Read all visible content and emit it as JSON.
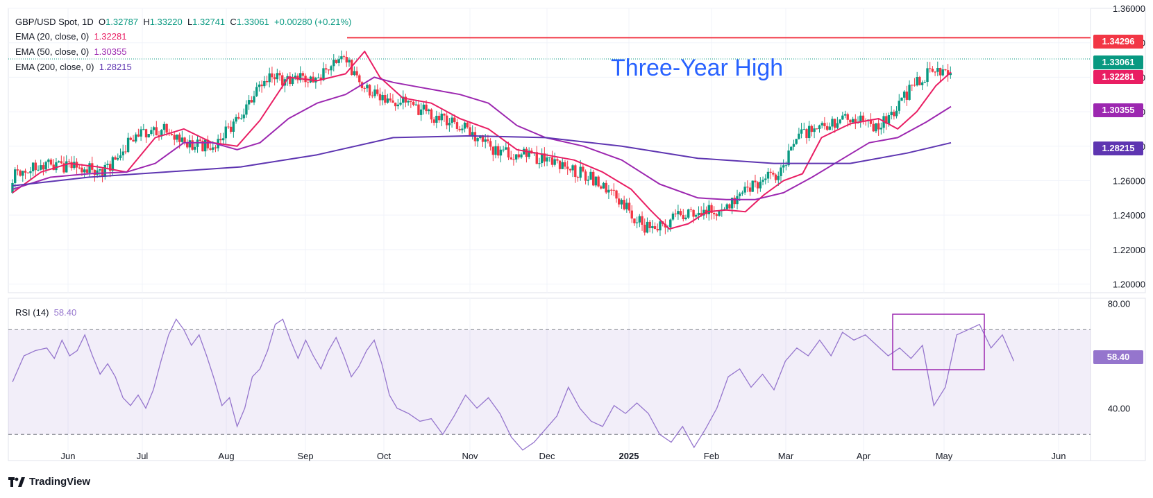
{
  "instrument": {
    "title": "GBP/USD Spot, 1D",
    "open_label": "O",
    "open": "1.32787",
    "high_label": "H",
    "high": "1.33220",
    "low_label": "L",
    "low": "1.32741",
    "close_label": "C",
    "close": "1.33061",
    "change": "+0.00280 (+0.21%)"
  },
  "indicators": {
    "ema20": {
      "label": "EMA (20, close, 0)",
      "value": "1.32281",
      "color": "#e91e63"
    },
    "ema50": {
      "label": "EMA (50, close, 0)",
      "value": "1.30355",
      "color": "#9c27b0"
    },
    "ema200": {
      "label": "EMA (200, close, 0)",
      "value": "1.28215",
      "color": "#5e35b1"
    },
    "rsi": {
      "label": "RSI (14)",
      "value": "58.40",
      "color": "#9575cd"
    }
  },
  "annotation": "Three-Year High",
  "price_badges": {
    "resistance": {
      "value": "1.34296",
      "color": "#f23645"
    },
    "last": {
      "value": "1.33061",
      "color": "#089981"
    },
    "ema20": {
      "value": "1.32281",
      "color": "#e91e63"
    },
    "ema50": {
      "value": "1.30355",
      "color": "#9c27b0"
    },
    "ema200": {
      "value": "1.28215",
      "color": "#5e35b1"
    },
    "rsi": {
      "value": "58.40",
      "color": "#9575cd"
    }
  },
  "brand": "TradingView",
  "chart_data": [
    {
      "type": "candlestick",
      "title": "GBP/USD Spot, 1D",
      "y_ticks": [
        "1.36000",
        "1.34000",
        "1.32000",
        "1.30000",
        "1.28000",
        "1.26000",
        "1.24000",
        "1.22000",
        "1.20000"
      ],
      "ylim": [
        1.195,
        1.36
      ],
      "x_ticks": [
        "Jun",
        "Jul",
        "Aug",
        "Sep",
        "Oct",
        "Nov",
        "Dec",
        "2025",
        "Feb",
        "Mar",
        "Apr",
        "May",
        "Jun"
      ],
      "resistance_level": 1.34296,
      "last_price": 1.33061,
      "series": [
        {
          "name": "EMA (20, close, 0)",
          "color": "#e91e63",
          "points": [
            [
              0,
              1.253
            ],
            [
              15,
              1.265
            ],
            [
              30,
              1.27
            ],
            [
              45,
              1.268
            ],
            [
              60,
              1.265
            ],
            [
              75,
              1.285
            ],
            [
              90,
              1.29
            ],
            [
              105,
              1.282
            ],
            [
              118,
              1.28
            ],
            [
              130,
              1.295
            ],
            [
              145,
              1.32
            ],
            [
              160,
              1.318
            ],
            [
              175,
              1.322
            ],
            [
              185,
              1.335
            ],
            [
              193,
              1.32
            ],
            [
              205,
              1.308
            ],
            [
              220,
              1.305
            ],
            [
              235,
              1.296
            ],
            [
              250,
              1.29
            ],
            [
              265,
              1.278
            ],
            [
              280,
              1.275
            ],
            [
              295,
              1.272
            ],
            [
              310,
              1.265
            ],
            [
              325,
              1.255
            ],
            [
              335,
              1.243
            ],
            [
              345,
              1.232
            ],
            [
              355,
              1.235
            ],
            [
              365,
              1.242
            ],
            [
              375,
              1.243
            ],
            [
              385,
              1.242
            ],
            [
              395,
              1.252
            ],
            [
              405,
              1.26
            ],
            [
              415,
              1.264
            ],
            [
              425,
              1.285
            ],
            [
              440,
              1.293
            ],
            [
              455,
              1.296
            ],
            [
              465,
              1.29
            ],
            [
              475,
              1.3
            ],
            [
              485,
              1.315
            ],
            [
              493,
              1.323
            ]
          ]
        },
        {
          "name": "EMA (50, close, 0)",
          "color": "#9c27b0",
          "points": [
            [
              0,
              1.255
            ],
            [
              20,
              1.262
            ],
            [
              40,
              1.264
            ],
            [
              60,
              1.265
            ],
            [
              75,
              1.27
            ],
            [
              90,
              1.282
            ],
            [
              105,
              1.282
            ],
            [
              118,
              1.278
            ],
            [
              130,
              1.282
            ],
            [
              145,
              1.296
            ],
            [
              160,
              1.305
            ],
            [
              175,
              1.31
            ],
            [
              190,
              1.32
            ],
            [
              200,
              1.317
            ],
            [
              215,
              1.314
            ],
            [
              235,
              1.31
            ],
            [
              250,
              1.305
            ],
            [
              265,
              1.292
            ],
            [
              280,
              1.285
            ],
            [
              300,
              1.28
            ],
            [
              320,
              1.272
            ],
            [
              340,
              1.258
            ],
            [
              360,
              1.25
            ],
            [
              375,
              1.249
            ],
            [
              390,
              1.249
            ],
            [
              405,
              1.253
            ],
            [
              420,
              1.262
            ],
            [
              435,
              1.272
            ],
            [
              450,
              1.282
            ],
            [
              465,
              1.285
            ],
            [
              480,
              1.294
            ],
            [
              493,
              1.303
            ]
          ]
        },
        {
          "name": "EMA (200, close, 0)",
          "color": "#5e35b1",
          "points": [
            [
              0,
              1.257
            ],
            [
              40,
              1.262
            ],
            [
              80,
              1.265
            ],
            [
              120,
              1.268
            ],
            [
              160,
              1.275
            ],
            [
              200,
              1.285
            ],
            [
              240,
              1.286
            ],
            [
              280,
              1.285
            ],
            [
              320,
              1.28
            ],
            [
              360,
              1.273
            ],
            [
              400,
              1.27
            ],
            [
              440,
              1.27
            ],
            [
              470,
              1.276
            ],
            [
              493,
              1.282
            ]
          ]
        }
      ]
    },
    {
      "type": "line",
      "title": "RSI (14)",
      "y_ticks": [
        "80.00",
        "40.00"
      ],
      "ylim": [
        20,
        82
      ],
      "bands": [
        70,
        30
      ],
      "series": [
        {
          "name": "RSI (14)",
          "color": "#9575cd",
          "points": [
            [
              0,
              50
            ],
            [
              6,
              60
            ],
            [
              12,
              62
            ],
            [
              18,
              63
            ],
            [
              22,
              59
            ],
            [
              26,
              66
            ],
            [
              30,
              60
            ],
            [
              34,
              62
            ],
            [
              38,
              68
            ],
            [
              42,
              60
            ],
            [
              46,
              53
            ],
            [
              50,
              57
            ],
            [
              54,
              52
            ],
            [
              58,
              44
            ],
            [
              62,
              41
            ],
            [
              66,
              45
            ],
            [
              70,
              40
            ],
            [
              74,
              47
            ],
            [
              78,
              58
            ],
            [
              82,
              68
            ],
            [
              86,
              74
            ],
            [
              90,
              70
            ],
            [
              94,
              64
            ],
            [
              98,
              68
            ],
            [
              102,
              60
            ],
            [
              106,
              51
            ],
            [
              110,
              41
            ],
            [
              114,
              44
            ],
            [
              118,
              33
            ],
            [
              122,
              40
            ],
            [
              126,
              52
            ],
            [
              130,
              55
            ],
            [
              134,
              62
            ],
            [
              138,
              72
            ],
            [
              142,
              74
            ],
            [
              146,
              66
            ],
            [
              150,
              59
            ],
            [
              154,
              66
            ],
            [
              158,
              60
            ],
            [
              162,
              55
            ],
            [
              166,
              62
            ],
            [
              170,
              67
            ],
            [
              174,
              60
            ],
            [
              178,
              52
            ],
            [
              182,
              56
            ],
            [
              186,
              62
            ],
            [
              190,
              66
            ],
            [
              194,
              57
            ],
            [
              198,
              45
            ],
            [
              202,
              40
            ],
            [
              208,
              38
            ],
            [
              214,
              35
            ],
            [
              220,
              36
            ],
            [
              226,
              30
            ],
            [
              232,
              37
            ],
            [
              238,
              45
            ],
            [
              244,
              40
            ],
            [
              250,
              44
            ],
            [
              256,
              38
            ],
            [
              262,
              29
            ],
            [
              268,
              24
            ],
            [
              274,
              27
            ],
            [
              280,
              32
            ],
            [
              286,
              37
            ],
            [
              292,
              48
            ],
            [
              298,
              40
            ],
            [
              304,
              35
            ],
            [
              310,
              33
            ],
            [
              316,
              41
            ],
            [
              322,
              38
            ],
            [
              328,
              42
            ],
            [
              334,
              38
            ],
            [
              340,
              30
            ],
            [
              346,
              27
            ],
            [
              352,
              33
            ],
            [
              358,
              25
            ],
            [
              364,
              32
            ],
            [
              370,
              40
            ],
            [
              376,
              52
            ],
            [
              382,
              55
            ],
            [
              388,
              48
            ],
            [
              394,
              53
            ],
            [
              400,
              47
            ],
            [
              406,
              58
            ],
            [
              412,
              63
            ],
            [
              418,
              60
            ],
            [
              424,
              66
            ],
            [
              430,
              60
            ],
            [
              436,
              69
            ],
            [
              442,
              66
            ],
            [
              448,
              68
            ],
            [
              454,
              64
            ],
            [
              460,
              60
            ],
            [
              466,
              63
            ],
            [
              472,
              59
            ],
            [
              478,
              64
            ],
            [
              484,
              41
            ],
            [
              490,
              48
            ],
            [
              496,
              68
            ],
            [
              502,
              70
            ],
            [
              508,
              72
            ],
            [
              514,
              63
            ],
            [
              520,
              68
            ],
            [
              526,
              58
            ]
          ]
        }
      ]
    }
  ]
}
